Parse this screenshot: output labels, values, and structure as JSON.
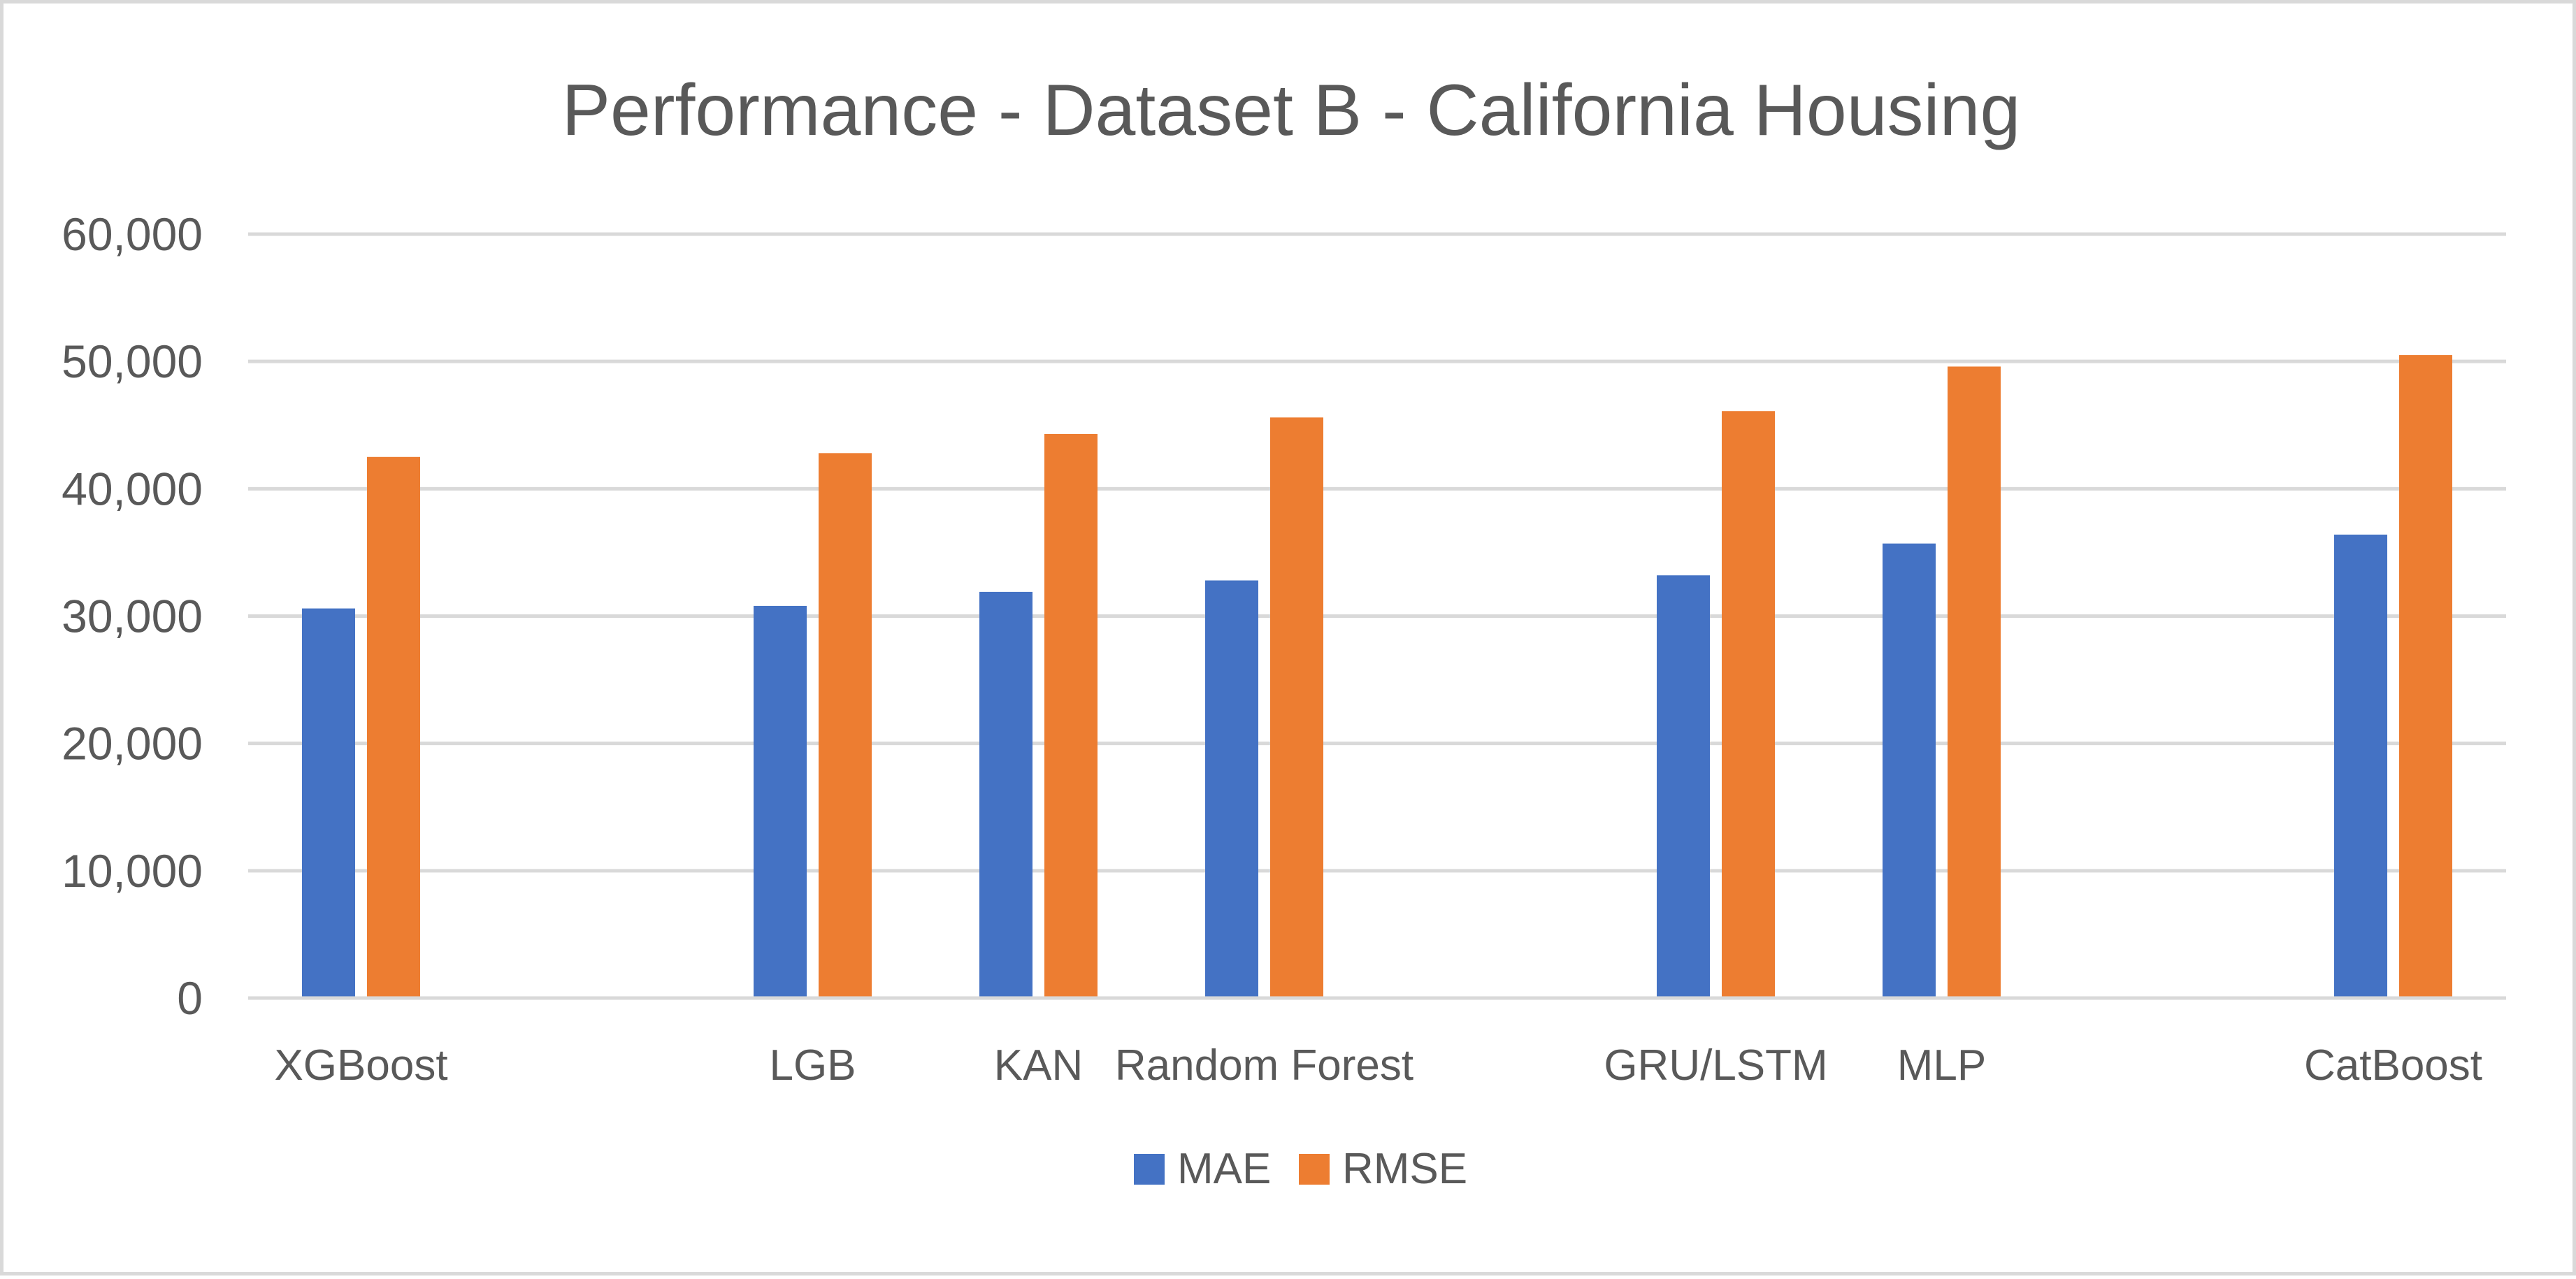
{
  "chart_data": {
    "type": "bar",
    "title": "Performance - Dataset B - California Housing",
    "xlabel": "",
    "ylabel": "",
    "ylim": [
      0,
      60000
    ],
    "yticks": [
      0,
      10000,
      20000,
      30000,
      40000,
      50000,
      60000
    ],
    "ytick_labels": [
      "0",
      "10,000",
      "20,000",
      "30,000",
      "40,000",
      "50,000",
      "60,000"
    ],
    "grid": true,
    "legend_position": "bottom",
    "categories": [
      "XGBoost",
      "LGB",
      "KAN",
      "Random Forest",
      "GRU/LSTM",
      "MLP",
      "CatBoost"
    ],
    "category_slots": [
      0,
      2,
      3,
      4,
      6,
      7,
      9
    ],
    "slot_count": 10,
    "series": [
      {
        "name": "MAE",
        "color": "#4472c4",
        "values": [
          30600,
          30800,
          31900,
          32800,
          33200,
          35700,
          36400
        ]
      },
      {
        "name": "RMSE",
        "color": "#ed7d31",
        "values": [
          42500,
          42800,
          44300,
          45600,
          46100,
          49600,
          50500
        ]
      }
    ],
    "gridline_color": "#d9d9d9",
    "axis_color": "#d9d9d9"
  }
}
